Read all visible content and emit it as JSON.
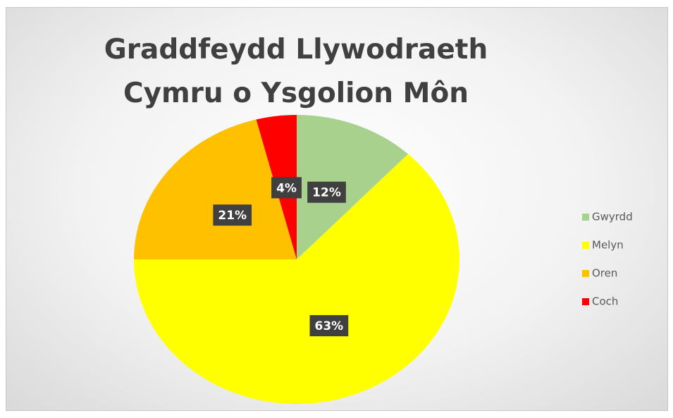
{
  "chart_data": {
    "type": "pie",
    "title": "Graddfeydd Llywodraeth Cymru o Ysgolion Môn",
    "categories": [
      "Gwyrdd",
      "Melyn",
      "Oren",
      "Coch"
    ],
    "values": [
      12,
      63,
      21,
      4
    ],
    "value_labels": [
      "12%",
      "63%",
      "21%",
      "4%"
    ],
    "colors": [
      "#a9d18e",
      "#ffff00",
      "#ffc000",
      "#ff0000"
    ],
    "legend": "right"
  }
}
